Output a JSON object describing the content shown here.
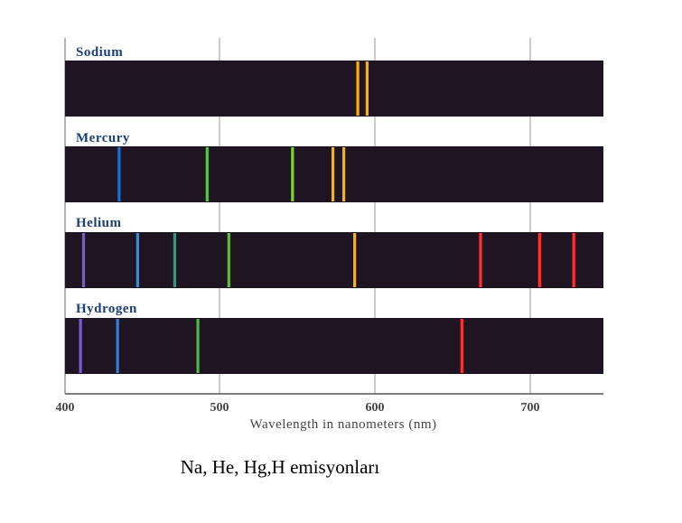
{
  "chart_data": {
    "type": "emission-spectra",
    "xlabel": "Wavelength in nanometers (nm)",
    "xlim": [
      400,
      750
    ],
    "x_ticks": [
      400,
      500,
      600,
      700
    ],
    "grid": true,
    "spectra": [
      {
        "name": "Sodium",
        "lines": [
          {
            "wavelength": 589,
            "color": "#ffb000"
          },
          {
            "wavelength": 595,
            "color": "#ffb000"
          }
        ]
      },
      {
        "name": "Mercury",
        "lines": [
          {
            "wavelength": 435,
            "color": "#1e6fd0"
          },
          {
            "wavelength": 492,
            "color": "#5fc24a"
          },
          {
            "wavelength": 547,
            "color": "#7fd33a"
          },
          {
            "wavelength": 573,
            "color": "#ffb000"
          },
          {
            "wavelength": 580,
            "color": "#ffb000"
          }
        ]
      },
      {
        "name": "Helium",
        "lines": [
          {
            "wavelength": 412,
            "color": "#7a5ad0"
          },
          {
            "wavelength": 447,
            "color": "#2b8fe6"
          },
          {
            "wavelength": 471,
            "color": "#3f8f7a"
          },
          {
            "wavelength": 506,
            "color": "#6ab83a"
          },
          {
            "wavelength": 587,
            "color": "#ffb000"
          },
          {
            "wavelength": 668,
            "color": "#ff3030"
          },
          {
            "wavelength": 706,
            "color": "#ff3030"
          },
          {
            "wavelength": 728,
            "color": "#ff3030"
          }
        ]
      },
      {
        "name": "Hydrogen",
        "lines": [
          {
            "wavelength": 410,
            "color": "#7a5ad0"
          },
          {
            "wavelength": 434,
            "color": "#2b7fe0"
          },
          {
            "wavelength": 486,
            "color": "#4fb84a"
          },
          {
            "wavelength": 656,
            "color": "#ff3030"
          }
        ]
      }
    ]
  },
  "caption": "Na, He, Hg,H emisyonları"
}
